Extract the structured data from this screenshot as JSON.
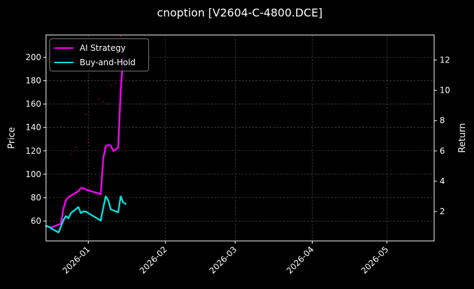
{
  "chart_data": {
    "type": "line",
    "title": "cnoption [V2604-C-4800.DCE]",
    "xlabel": "",
    "ylabel": "Price",
    "y2label": "Return",
    "x_ticks": [
      "2026-01",
      "2026-02",
      "2026-03",
      "2026-04",
      "2026-05"
    ],
    "y_ticks": [
      60,
      80,
      100,
      120,
      140,
      160,
      180,
      200
    ],
    "y2_ticks": [
      2,
      4,
      6,
      8,
      10,
      12
    ],
    "xlim": [
      "2025-12-15",
      "2026-05-20"
    ],
    "ylim": [
      43,
      219
    ],
    "y2lim": [
      0.06,
      13.65
    ],
    "grid": true,
    "legend_position": "top-left",
    "series": [
      {
        "name": "AI Strategy",
        "color": "#ff00ff",
        "axis": "right",
        "x": [
          "2025-12-15",
          "2025-12-16",
          "2025-12-17",
          "2025-12-18",
          "2025-12-21",
          "2025-12-22",
          "2025-12-23",
          "2025-12-24",
          "2025-12-25",
          "2025-12-28",
          "2025-12-29",
          "2025-12-30",
          "2025-12-31",
          "2026-01-06",
          "2026-01-07",
          "2026-01-08",
          "2026-01-09",
          "2026-01-10",
          "2026-01-11",
          "2026-01-13",
          "2026-01-14",
          "2026-01-15"
        ],
        "values": [
          1.05,
          1.0,
          0.95,
          1.0,
          1.2,
          2.2,
          2.75,
          2.95,
          3.05,
          3.35,
          3.55,
          3.55,
          3.45,
          3.15,
          5.5,
          6.3,
          6.4,
          6.35,
          6.0,
          6.2,
          10.0,
          12.1
        ]
      },
      {
        "name": "Buy-and-Hold",
        "color": "#00e5e5",
        "axis": "right",
        "x": [
          "2025-12-15",
          "2025-12-16",
          "2025-12-17",
          "2025-12-20",
          "2025-12-21",
          "2025-12-22",
          "2025-12-23",
          "2025-12-24",
          "2025-12-25",
          "2025-12-28",
          "2025-12-29",
          "2025-12-30",
          "2025-12-31",
          "2026-01-06",
          "2026-01-07",
          "2026-01-08",
          "2026-01-09",
          "2026-01-10",
          "2026-01-13",
          "2026-01-14",
          "2026-01-15",
          "2026-01-16"
        ],
        "values": [
          1.05,
          1.0,
          0.9,
          0.62,
          1.0,
          1.45,
          1.7,
          1.55,
          1.9,
          2.3,
          1.9,
          2.0,
          2.0,
          1.4,
          2.25,
          3.0,
          2.75,
          2.15,
          1.95,
          3.0,
          2.6,
          2.5
        ]
      }
    ],
    "price_markers": {
      "color": "#ff0044",
      "x": [
        "2025-12-25",
        "2025-12-27",
        "2025-12-31",
        "2026-01-01",
        "2026-01-05",
        "2026-01-07",
        "2026-01-09",
        "2026-01-10",
        "2026-01-12",
        "2026-01-14"
      ],
      "values": [
        117,
        123,
        151,
        127,
        164,
        162,
        160,
        176,
        178,
        218
      ]
    }
  }
}
